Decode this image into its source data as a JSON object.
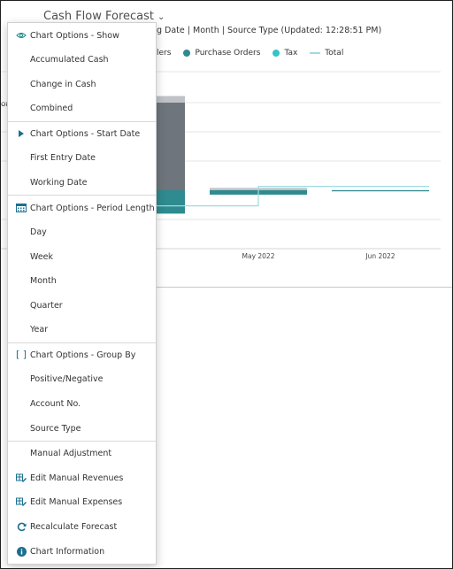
{
  "header": {
    "title": "Cash Flow Forecast",
    "subtitle_visible": "g Date | Month | Source Type (Updated: 12:28:51 PM)",
    "left_stub": "on"
  },
  "legend": {
    "items": [
      {
        "label": "lers",
        "color": "",
        "kind": "none"
      },
      {
        "label": "Purchase Orders",
        "color": "#2e8b8f",
        "kind": "dot"
      },
      {
        "label": "Tax",
        "color": "#35c3c8",
        "kind": "dot"
      },
      {
        "label": "Total",
        "color": "#9fdbe0",
        "kind": "line"
      }
    ]
  },
  "chart_data": {
    "type": "bar",
    "categories": [
      "",
      "May 2022",
      "Jun 2022"
    ],
    "series": [
      {
        "values": [
          1,
          0.35,
          0.02
        ],
        "color": "#bfc2c7"
      },
      {
        "values": [
          4.5,
          0,
          0
        ],
        "color": "#6e757c"
      },
      {
        "values": [
          -1.2,
          -0.25,
          -0.06
        ],
        "color": "#2e8b8f"
      }
    ],
    "total_line": [
      -0.8,
      0.2,
      0.05
    ],
    "grid": true
  },
  "menu": {
    "show_header": "Chart Options - Show",
    "show_items": [
      "Accumulated Cash",
      "Change in Cash",
      "Combined"
    ],
    "start_header": "Chart Options - Start Date",
    "start_items": [
      "First Entry Date",
      "Working Date"
    ],
    "period_header": "Chart Options - Period Length",
    "period_items": [
      "Day",
      "Week",
      "Month",
      "Quarter",
      "Year"
    ],
    "group_header": "Chart Options - Group By",
    "group_items": [
      "Positive/Negative",
      "Account No.",
      "Source Type"
    ],
    "manual_header": "Manual Adjustment",
    "edit_revenues": "Edit Manual Revenues",
    "edit_expenses": "Edit Manual Expenses",
    "recalculate": "Recalculate Forecast",
    "chart_info": "Chart Information"
  },
  "icons": {
    "show": "eye-icon",
    "start": "play-triangle-icon",
    "period": "calendar-grid-icon",
    "group": "brackets-icon",
    "edit_revenues": "edit-table-icon",
    "edit_expenses": "edit-table-icon",
    "recalculate": "refresh-icon",
    "chart_info": "info-icon"
  },
  "colors": {
    "accent": "#1b8a8f"
  }
}
